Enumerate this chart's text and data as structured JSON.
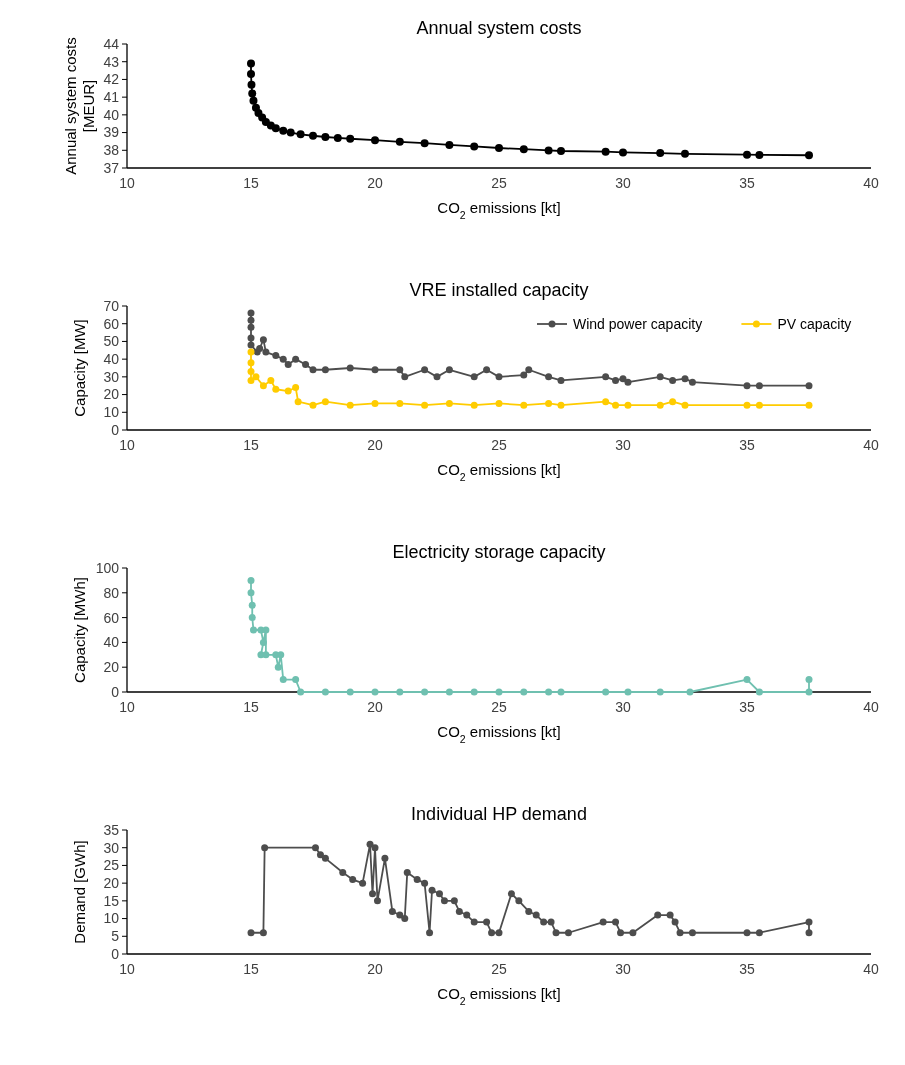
{
  "chart_data": [
    {
      "type": "line",
      "title": "Annual system costs",
      "xlabel": "CO$_{2}$ emissions [kt]",
      "ylabel": "Annual system costs [MEUR]",
      "xlim": [
        10,
        40
      ],
      "xticks": [
        10,
        15,
        20,
        25,
        30,
        35,
        40
      ],
      "ylim": [
        37,
        44
      ],
      "yticks": [
        37,
        38,
        39,
        40,
        41,
        42,
        43,
        44
      ],
      "marker": "circle",
      "series": [
        {
          "color": "#000000",
          "x": [
            15,
            15,
            15.02,
            15.05,
            15.1,
            15.2,
            15.3,
            15.45,
            15.6,
            15.8,
            16,
            16.3,
            16.6,
            17,
            17.5,
            18,
            18.5,
            19,
            20,
            21,
            22,
            23,
            24,
            25,
            26,
            27,
            27.5,
            29.3,
            30,
            31.5,
            32.5,
            35,
            35.5,
            37.5
          ],
          "values": [
            42.9,
            42.3,
            41.7,
            41.2,
            40.8,
            40.4,
            40.1,
            39.85,
            39.6,
            39.4,
            39.25,
            39.1,
            39,
            38.9,
            38.82,
            38.75,
            38.7,
            38.65,
            38.57,
            38.48,
            38.4,
            38.3,
            38.22,
            38.13,
            38.06,
            37.99,
            37.96,
            37.92,
            37.88,
            37.84,
            37.8,
            37.75,
            37.74,
            37.72
          ]
        }
      ]
    },
    {
      "type": "line",
      "title": "VRE installed capacity",
      "xlabel": "CO$_{2}$ emissions [kt]",
      "ylabel": "Capacity [MW]",
      "xlim": [
        10,
        40
      ],
      "xticks": [
        10,
        15,
        20,
        25,
        30,
        35,
        40
      ],
      "ylim": [
        0,
        70
      ],
      "yticks": [
        0,
        10,
        20,
        30,
        40,
        50,
        60,
        70
      ],
      "marker": "circle",
      "legend": "top right",
      "series": [
        {
          "name": "Wind power capacity",
          "color": "#4d4d4d",
          "x": [
            15,
            15,
            15,
            15,
            15,
            15.25,
            15.35,
            15.5,
            15.6,
            16,
            16.3,
            16.5,
            16.8,
            17.2,
            17.5,
            18,
            19,
            20,
            21,
            21.2,
            22,
            22.5,
            23,
            24,
            24.5,
            25,
            26,
            26.2,
            27,
            27.5,
            29.3,
            29.7,
            30,
            30.2,
            31.5,
            32,
            32.5,
            32.8,
            35,
            35.5,
            37.5
          ],
          "values": [
            66,
            62,
            58,
            52,
            48,
            44,
            46,
            51,
            44,
            42,
            40,
            37,
            40,
            37,
            34,
            34,
            35,
            34,
            34,
            30,
            34,
            30,
            34,
            30,
            34,
            30,
            31,
            34,
            30,
            28,
            30,
            28,
            29,
            27,
            30,
            28,
            29,
            27,
            25,
            25,
            25
          ]
        },
        {
          "name": "PV capacity",
          "color": "#ffcc00",
          "x": [
            15,
            15,
            15,
            15,
            15.2,
            15.5,
            15.8,
            16,
            16.5,
            16.8,
            16.9,
            17.5,
            18,
            19,
            20,
            21,
            22,
            23,
            24,
            25,
            26,
            27,
            27.5,
            29.3,
            29.7,
            30.2,
            31.5,
            32,
            32.5,
            35,
            35.5,
            37.5
          ],
          "values": [
            44,
            38,
            33,
            28,
            30,
            25,
            28,
            23,
            22,
            24,
            16,
            14,
            16,
            14,
            15,
            15,
            14,
            15,
            14,
            15,
            14,
            15,
            14,
            16,
            14,
            14,
            14,
            16,
            14,
            14,
            14,
            14
          ]
        }
      ]
    },
    {
      "type": "line",
      "title": "Electricity storage capacity",
      "xlabel": "CO$_{2}$ emissions [kt]",
      "ylabel": "Capacity [MWh]",
      "xlim": [
        10,
        40
      ],
      "xticks": [
        10,
        15,
        20,
        25,
        30,
        35,
        40
      ],
      "ylim": [
        0,
        100
      ],
      "yticks": [
        0,
        20,
        40,
        60,
        80,
        100
      ],
      "marker": "circle",
      "series": [
        {
          "color": "#6fc0b0",
          "x": [
            15,
            15,
            15.05,
            15.05,
            15.1,
            15.4,
            15.5,
            15.4,
            15.6,
            15.6,
            16,
            16.1,
            16.2,
            16.3,
            16.8,
            17,
            18,
            19,
            20,
            21,
            22,
            23,
            24,
            25,
            26,
            27,
            27.5,
            29.3,
            30.2,
            31.5,
            32.7,
            35,
            35.5,
            37.5,
            37.5
          ],
          "values": [
            90,
            80,
            70,
            60,
            50,
            50,
            40,
            30,
            50,
            30,
            30,
            20,
            30,
            10,
            10,
            0,
            0,
            0,
            0,
            0,
            0,
            0,
            0,
            0,
            0,
            0,
            0,
            0,
            0,
            0,
            0,
            10,
            0,
            0,
            10
          ]
        }
      ]
    },
    {
      "type": "line",
      "title": "Individual HP demand",
      "xlabel": "CO$_{2}$ emissions [kt]",
      "ylabel": "Demand [GWh]",
      "xlim": [
        10,
        40
      ],
      "xticks": [
        10,
        15,
        20,
        25,
        30,
        35,
        40
      ],
      "ylim": [
        0,
        35
      ],
      "yticks": [
        0,
        5,
        10,
        15,
        20,
        25,
        30,
        35
      ],
      "marker": "circle",
      "series": [
        {
          "color": "#4d4d4d",
          "x": [
            15,
            15.5,
            15.55,
            17.6,
            17.8,
            18,
            18.7,
            19.1,
            19.5,
            19.8,
            19.9,
            20,
            20.1,
            20.4,
            20.7,
            21,
            21.2,
            21.3,
            21.7,
            22,
            22.2,
            22.3,
            22.6,
            22.8,
            23.2,
            23.4,
            23.7,
            24,
            24.5,
            24.7,
            25,
            25.5,
            25.8,
            26.2,
            26.5,
            26.8,
            27.1,
            27.3,
            27.8,
            29.2,
            29.7,
            29.9,
            30.4,
            31.4,
            31.9,
            32.1,
            32.3,
            32.8,
            35,
            35.5,
            37.5,
            37.5
          ],
          "values": [
            6,
            6,
            30,
            30,
            28,
            27,
            23,
            21,
            20,
            31,
            17,
            30,
            15,
            27,
            12,
            11,
            10,
            23,
            21,
            20,
            6,
            18,
            17,
            15,
            15,
            12,
            11,
            9,
            9,
            6,
            6,
            17,
            15,
            12,
            11,
            9,
            9,
            6,
            6,
            9,
            9,
            6,
            6,
            11,
            11,
            9,
            6,
            6,
            6,
            6,
            9,
            6
          ]
        }
      ]
    }
  ]
}
